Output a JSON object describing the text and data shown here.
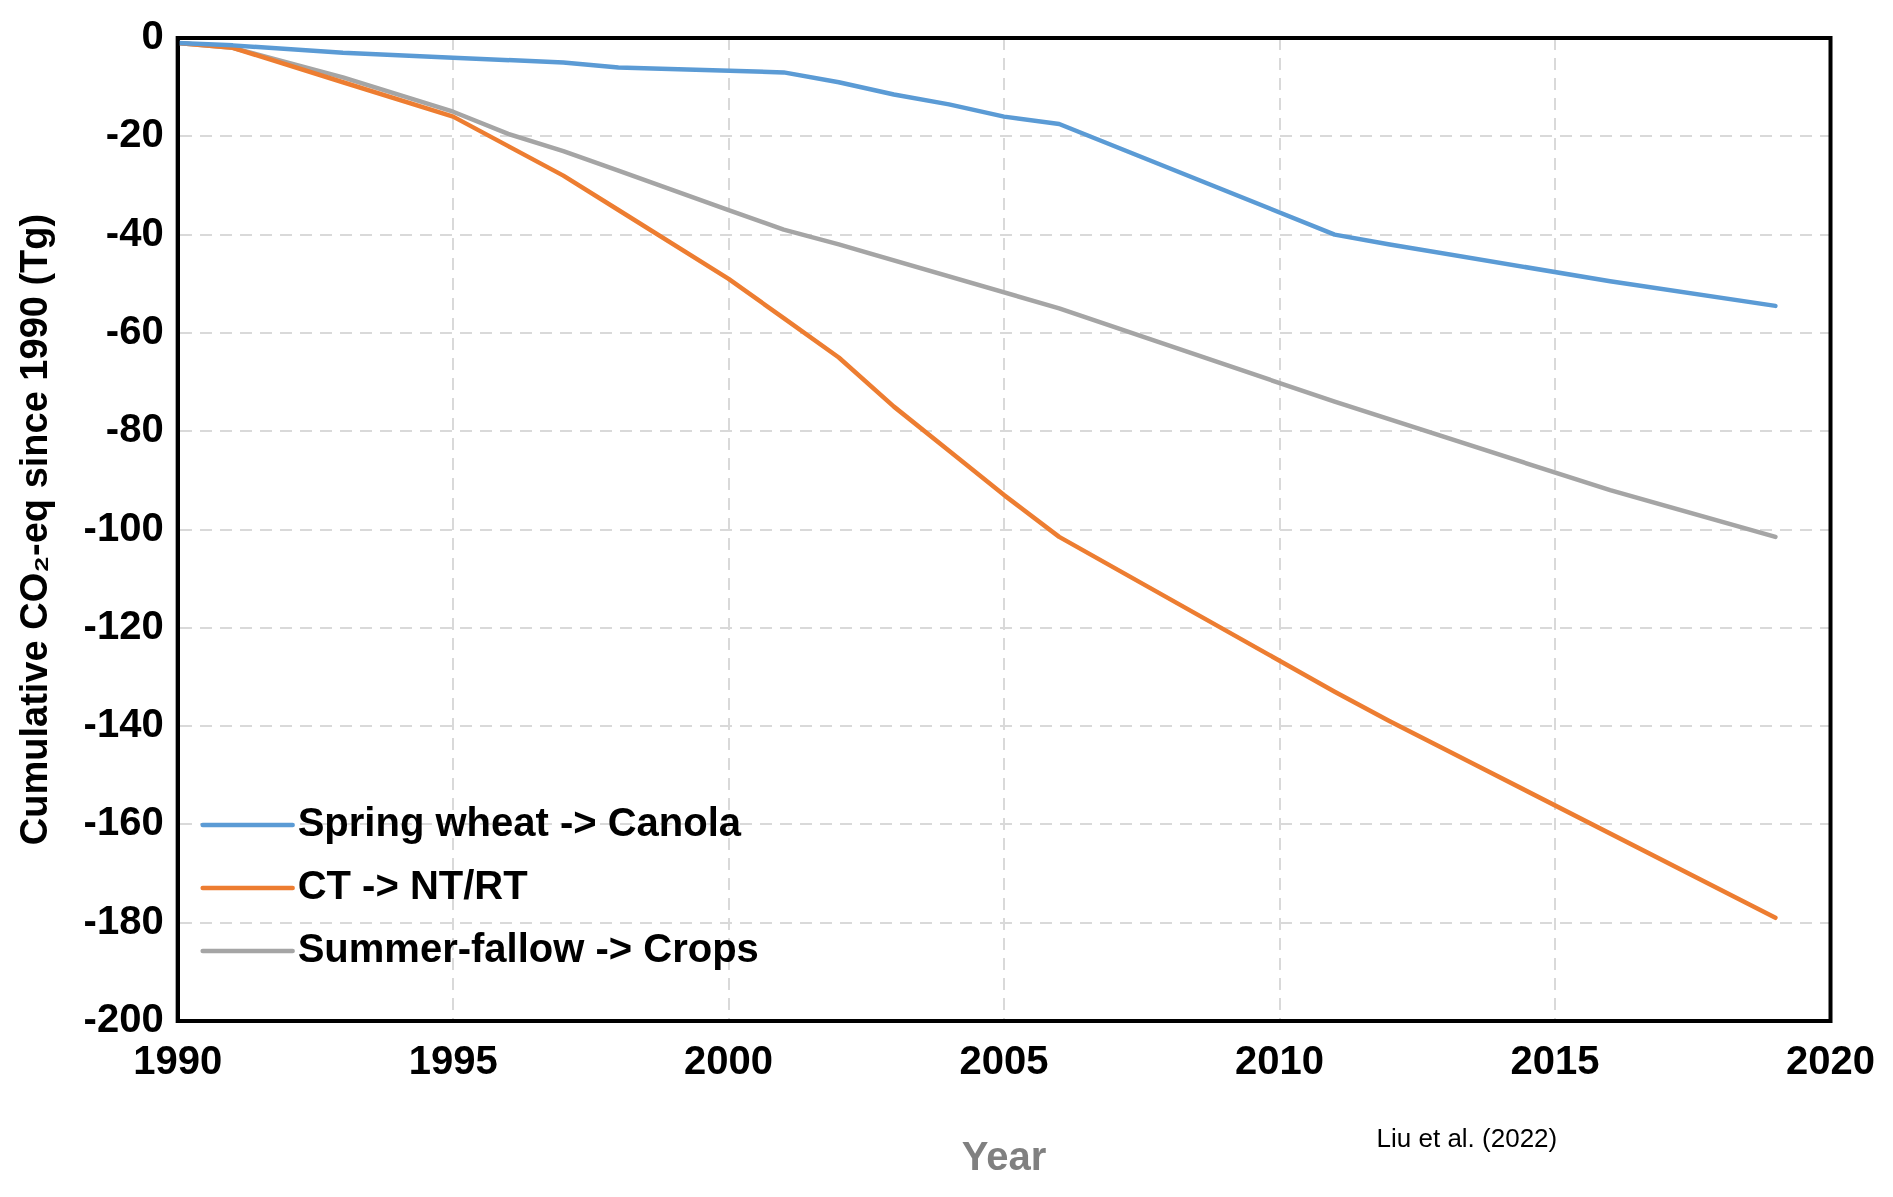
{
  "chart_data": {
    "type": "line",
    "xlabel": "Year",
    "ylabel": "Cumulative CO₂-eq since 1990 (Tg)",
    "xlim": [
      1990,
      2020
    ],
    "xticks": [
      1990,
      1995,
      2000,
      2005,
      2010,
      2015,
      2020
    ],
    "ylim": [
      -200,
      0
    ],
    "yticks": [
      -200,
      -180,
      -160,
      -140,
      -120,
      -100,
      -80,
      -60,
      -40,
      -20,
      0
    ],
    "grid": true,
    "legend": "bottom left",
    "line_style": "solid",
    "marker": "none",
    "annotations": [
      "Liu et al. (2022)"
    ],
    "series": [
      {
        "name": "Spring wheat -> Canola",
        "color": "#5b9bd5",
        "x": [
          1990,
          1991,
          1993,
          1995,
          1997,
          1998,
          2001,
          2002,
          2003,
          2004,
          2005,
          2006,
          2011,
          2012,
          2016,
          2019
        ],
        "values": [
          -1,
          -1.5,
          -3,
          -4,
          -5,
          -6,
          -7,
          -9,
          -11.5,
          -13.5,
          -16,
          -17.5,
          -40,
          -42,
          -49.5,
          -54.5
        ]
      },
      {
        "name": "CT -> NT/RT",
        "color": "#ed7d31",
        "x": [
          1990,
          1991,
          1993,
          1995,
          1996,
          1997,
          1998,
          2000,
          2001,
          2002,
          2003,
          2004,
          2005,
          2006,
          2011,
          2012,
          2019
        ],
        "values": [
          -1,
          -2,
          -9,
          -16,
          -22,
          -28,
          -35,
          -49,
          -57,
          -65,
          -75,
          -84,
          -93,
          -101.5,
          -133,
          -139,
          -179
        ]
      },
      {
        "name": "Summer-fallow -> Crops",
        "color": "#a5a5a5",
        "x": [
          1990,
          1991,
          1993,
          1995,
          1996,
          1997,
          1998,
          1999,
          2000,
          2001,
          2002,
          2006,
          2011,
          2016,
          2019
        ],
        "values": [
          -1,
          -2,
          -8,
          -15,
          -19.5,
          -23,
          -27,
          -31,
          -35,
          -39,
          -42,
          -55,
          -74,
          -92,
          -101.5
        ]
      }
    ]
  }
}
